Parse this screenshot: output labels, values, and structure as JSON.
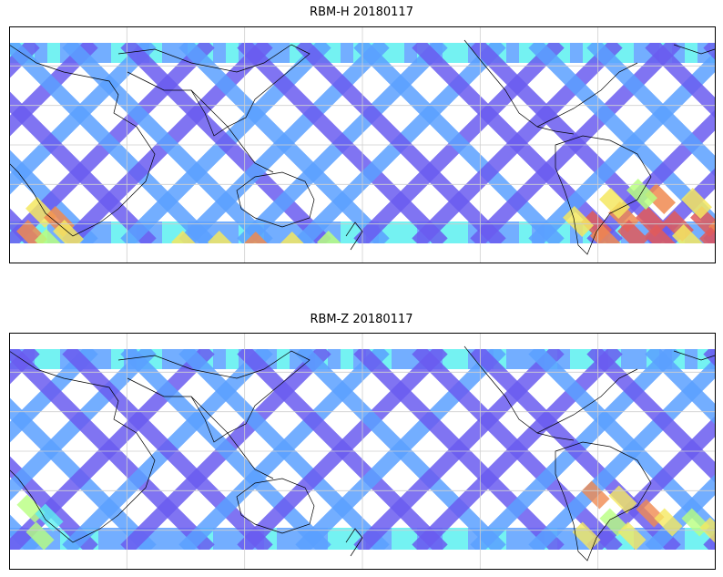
{
  "panels": [
    {
      "id": "top",
      "title": "RBM-H 20180117",
      "hot_region": "strong"
    },
    {
      "id": "bottom",
      "title": "RBM-Z 20180117",
      "hot_region": "weak"
    }
  ],
  "colors": {
    "low": "#6a5cf0",
    "mid_low": "#5aa0ff",
    "mid": "#5cf0f0",
    "mid_high": "#b8ff80",
    "high_mid": "#f5e860",
    "high": "#f08a50",
    "max": "#e05a5a",
    "coast": "#000000",
    "grid": "#cfcfcf"
  },
  "map": {
    "projection": "cylindrical",
    "grid": true,
    "coastlines": true
  }
}
